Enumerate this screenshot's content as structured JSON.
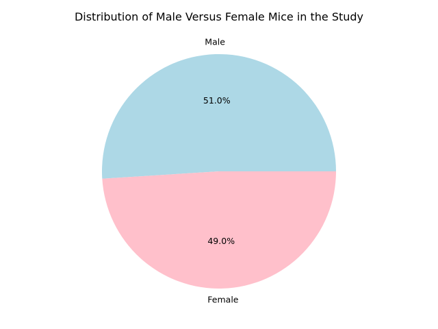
{
  "chart_data": {
    "type": "pie",
    "title": "Distribution of Male Versus Female Mice in the Study",
    "labels": [
      "Male",
      "Female"
    ],
    "values": [
      51.0,
      49.0
    ],
    "percent_labels": [
      "51.0%",
      "49.0%"
    ],
    "colors": [
      "#add8e6",
      "#ffc0cb"
    ],
    "start_angle_deg": 0,
    "direction": "counterclockwise",
    "legend": "none"
  }
}
